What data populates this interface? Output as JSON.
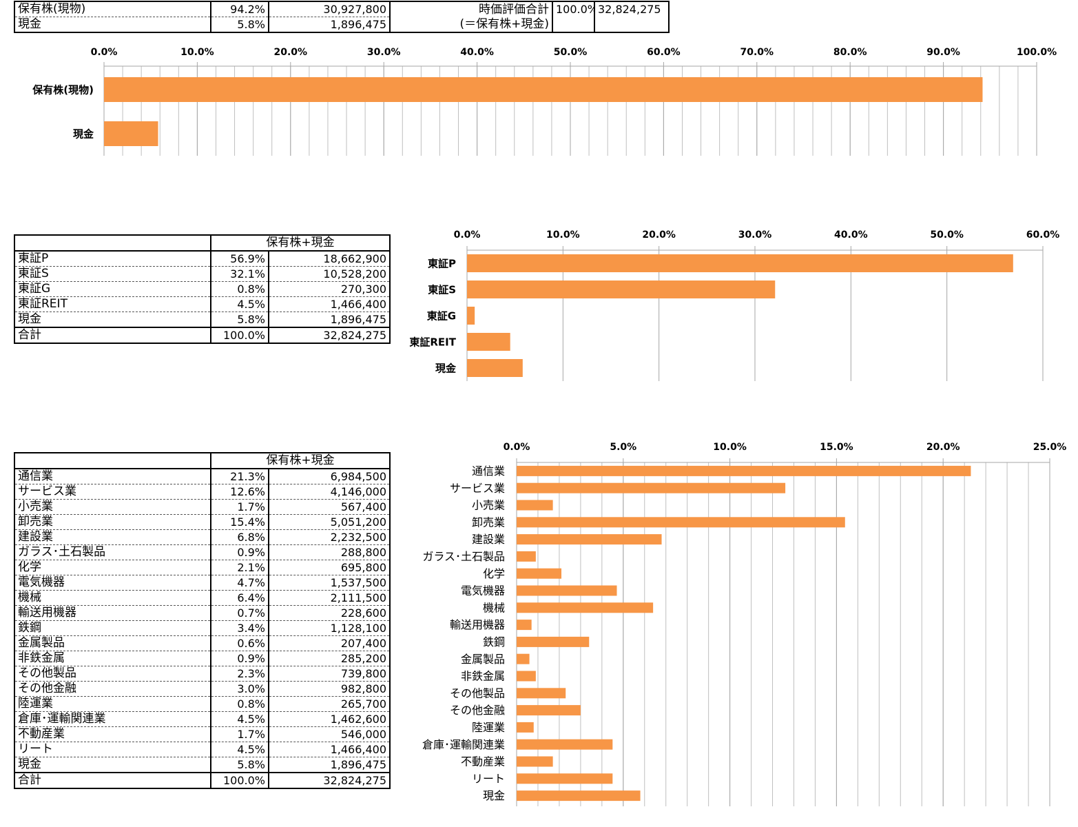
{
  "summary_table": {
    "rows": [
      {
        "label": "保有株(現物)",
        "pct": "94.2%",
        "value": "30,927,800"
      },
      {
        "label": "現金",
        "pct": "5.8%",
        "value": "1,896,475"
      }
    ],
    "total_label_line1": "時価評価合計",
    "total_label_line2": "(＝保有株+現金)",
    "total_pct": "100.0%",
    "total_value": "32,824,275"
  },
  "market_table": {
    "header": "保有株+現金",
    "rows": [
      {
        "label": "東証P",
        "pct": "56.9%",
        "value": "18,662,900"
      },
      {
        "label": "東証S",
        "pct": "32.1%",
        "value": "10,528,200"
      },
      {
        "label": "東証G",
        "pct": "0.8%",
        "value": "270,300"
      },
      {
        "label": "東証REIT",
        "pct": "4.5%",
        "value": "1,466,400"
      },
      {
        "label": "現金",
        "pct": "5.8%",
        "value": "1,896,475"
      }
    ],
    "total": {
      "label": "合計",
      "pct": "100.0%",
      "value": "32,824,275"
    }
  },
  "sector_table": {
    "header": "保有株+現金",
    "rows": [
      {
        "label": "通信業",
        "pct": "21.3%",
        "value": "6,984,500"
      },
      {
        "label": "サービス業",
        "pct": "12.6%",
        "value": "4,146,000"
      },
      {
        "label": "小売業",
        "pct": "1.7%",
        "value": "567,400"
      },
      {
        "label": "卸売業",
        "pct": "15.4%",
        "value": "5,051,200"
      },
      {
        "label": "建設業",
        "pct": "6.8%",
        "value": "2,232,500"
      },
      {
        "label": "ガラス･土石製品",
        "pct": "0.9%",
        "value": "288,800"
      },
      {
        "label": "化学",
        "pct": "2.1%",
        "value": "695,800"
      },
      {
        "label": "電気機器",
        "pct": "4.7%",
        "value": "1,537,500"
      },
      {
        "label": "機械",
        "pct": "6.4%",
        "value": "2,111,500"
      },
      {
        "label": "輸送用機器",
        "pct": "0.7%",
        "value": "228,600"
      },
      {
        "label": "鉄鋼",
        "pct": "3.4%",
        "value": "1,128,100"
      },
      {
        "label": "金属製品",
        "pct": "0.6%",
        "value": "207,400"
      },
      {
        "label": "非鉄金属",
        "pct": "0.9%",
        "value": "285,200"
      },
      {
        "label": "その他製品",
        "pct": "2.3%",
        "value": "739,800"
      },
      {
        "label": "その他金融",
        "pct": "3.0%",
        "value": "982,800"
      },
      {
        "label": "陸運業",
        "pct": "0.8%",
        "value": "265,700"
      },
      {
        "label": "倉庫･運輸関連業",
        "pct": "4.5%",
        "value": "1,462,600"
      },
      {
        "label": "不動産業",
        "pct": "1.7%",
        "value": "546,000"
      },
      {
        "label": "リート",
        "pct": "4.5%",
        "value": "1,466,400"
      },
      {
        "label": "現金",
        "pct": "5.8%",
        "value": "1,896,475"
      }
    ],
    "total": {
      "label": "合計",
      "pct": "100.0%",
      "value": "32,824,275"
    }
  },
  "colors": {
    "bar": "#F79646",
    "grid": "#BFBFBF",
    "axis": "#A6A6A6"
  },
  "chart_data": [
    {
      "type": "bar",
      "orientation": "horizontal",
      "categories": [
        "保有株(現物)",
        "現金"
      ],
      "values": [
        94.2,
        5.8
      ],
      "xlim": [
        0,
        100
      ],
      "ticks": [
        0,
        10,
        20,
        30,
        40,
        50,
        60,
        70,
        80,
        90,
        100
      ],
      "tick_labels": [
        "0.0%",
        "10.0%",
        "20.0%",
        "30.0%",
        "40.0%",
        "50.0%",
        "60.0%",
        "70.0%",
        "80.0%",
        "90.0%",
        "100.0%"
      ],
      "axis_position": "top",
      "grid": true,
      "minor_grid": true
    },
    {
      "type": "bar",
      "orientation": "horizontal",
      "categories": [
        "東証P",
        "東証S",
        "東証G",
        "東証REIT",
        "現金"
      ],
      "values": [
        56.9,
        32.1,
        0.8,
        4.5,
        5.8
      ],
      "xlim": [
        0,
        60
      ],
      "ticks": [
        0,
        10,
        20,
        30,
        40,
        50,
        60
      ],
      "tick_labels": [
        "0.0%",
        "10.0%",
        "20.0%",
        "30.0%",
        "40.0%",
        "50.0%",
        "60.0%"
      ],
      "axis_position": "top",
      "grid": true,
      "minor_grid": false
    },
    {
      "type": "bar",
      "orientation": "horizontal",
      "categories": [
        "通信業",
        "サービス業",
        "小売業",
        "卸売業",
        "建設業",
        "ガラス･土石製品",
        "化学",
        "電気機器",
        "機械",
        "輸送用機器",
        "鉄鋼",
        "金属製品",
        "非鉄金属",
        "その他製品",
        "その他金融",
        "陸運業",
        "倉庫･運輸関連業",
        "不動産業",
        "リート",
        "現金"
      ],
      "values": [
        21.3,
        12.6,
        1.7,
        15.4,
        6.8,
        0.9,
        2.1,
        4.7,
        6.4,
        0.7,
        3.4,
        0.6,
        0.9,
        2.3,
        3.0,
        0.8,
        4.5,
        1.7,
        4.5,
        5.8
      ],
      "xlim": [
        0,
        25
      ],
      "ticks": [
        0,
        5,
        10,
        15,
        20,
        25
      ],
      "tick_labels": [
        "0.0%",
        "5.0%",
        "10.0%",
        "15.0%",
        "20.0%",
        "25.0%"
      ],
      "axis_position": "top",
      "grid": true,
      "minor_grid": true
    }
  ]
}
